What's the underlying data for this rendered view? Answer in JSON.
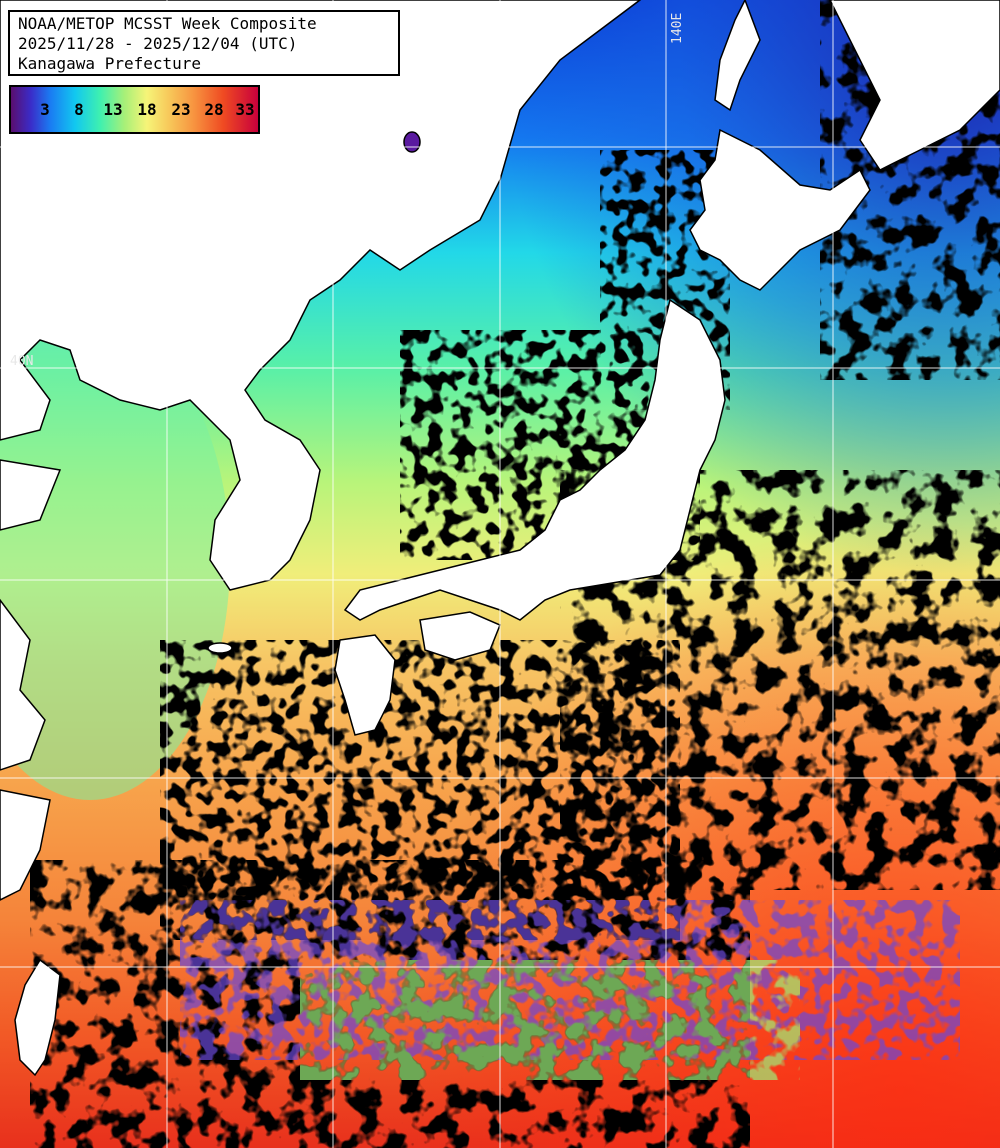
{
  "title": {
    "line1": "NOAA/METOP MCSST Week Composite",
    "line2": "2025/11/28 - 2025/12/04 (UTC)",
    "line3": "Kanagawa Prefecture"
  },
  "colorbar": {
    "ticks": [
      "3",
      "8",
      "13",
      "18",
      "23",
      "28",
      "33"
    ],
    "tick_values": [
      3,
      8,
      13,
      18,
      23,
      28,
      33
    ],
    "colors": [
      "#5a0e6e",
      "#1a7cf2",
      "#12c8f0",
      "#a8f078",
      "#f6f478",
      "#f79440",
      "#c8003c"
    ]
  },
  "graticule": {
    "lon_label": "140E",
    "lat_label": "40N"
  },
  "colors": {
    "land": "#ffffff",
    "cloud": "#000000",
    "gridline": "#ffffff"
  }
}
